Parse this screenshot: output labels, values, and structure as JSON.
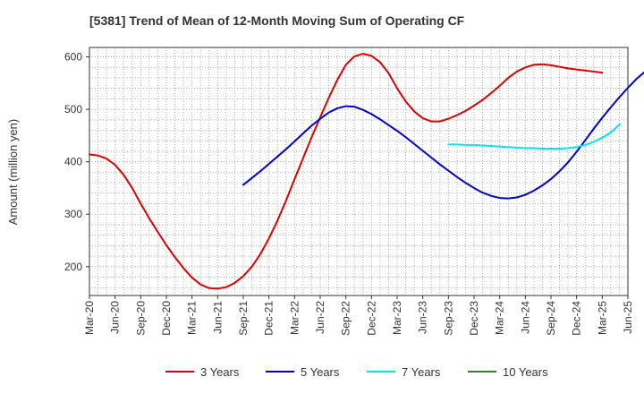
{
  "chart_data": {
    "type": "line",
    "title": "[5381]  Trend of Mean of 12-Month Moving Sum of Operating CF",
    "xlabel": "",
    "ylabel": "Amount (million yen)",
    "ylim": [
      145,
      618
    ],
    "yticks": [
      200,
      300,
      400,
      500,
      600
    ],
    "x_ticks": [
      "Mar-20",
      "Jun-20",
      "Sep-20",
      "Dec-20",
      "Mar-21",
      "Jun-21",
      "Sep-21",
      "Dec-21",
      "Mar-22",
      "Jun-22",
      "Sep-22",
      "Dec-22",
      "Mar-23",
      "Jun-23",
      "Sep-23",
      "Dec-23",
      "Mar-24",
      "Jun-24",
      "Sep-24",
      "Dec-24",
      "Mar-25",
      "Jun-25"
    ],
    "grid": true,
    "legend_position": "bottom",
    "series": [
      {
        "name": "3 Years",
        "color": "#dd0000",
        "start_index": 0,
        "values": [
          414,
          412,
          406,
          394,
          375,
          350,
          320,
          292,
          266,
          241,
          218,
          197,
          179,
          166,
          159,
          158,
          161,
          169,
          182,
          200,
          224,
          254,
          288,
          326,
          367,
          407,
          447,
          485,
          522,
          556,
          585,
          601,
          606,
          602,
          590,
          569,
          540,
          515,
          496,
          483,
          477,
          477,
          482,
          489,
          497,
          507,
          518,
          531,
          545,
          560,
          572,
          580,
          585,
          586,
          584,
          581,
          578,
          576,
          574,
          572,
          570
        ]
      },
      {
        "name": "5 Years",
        "color": "#0000cc",
        "start_index": 18,
        "values": [
          356,
          369,
          382,
          396,
          410,
          424,
          439,
          454,
          469,
          482,
          494,
          502,
          506,
          505,
          499,
          491,
          481,
          470,
          459,
          447,
          434,
          421,
          408,
          395,
          383,
          371,
          360,
          350,
          341,
          335,
          331,
          330,
          332,
          337,
          345,
          355,
          367,
          382,
          399,
          419,
          441,
          463,
          484,
          504,
          523,
          541,
          558,
          572
        ]
      },
      {
        "name": "7 Years",
        "color": "#00e5ee",
        "start_index": 42,
        "values": [
          433,
          433,
          432,
          432,
          431,
          430,
          429,
          428,
          427,
          426,
          426,
          425,
          425,
          425,
          426,
          428,
          432,
          438,
          446,
          456,
          471
        ]
      },
      {
        "name": "10 Years",
        "color": "#228b22",
        "start_index": 0,
        "values": []
      }
    ]
  }
}
